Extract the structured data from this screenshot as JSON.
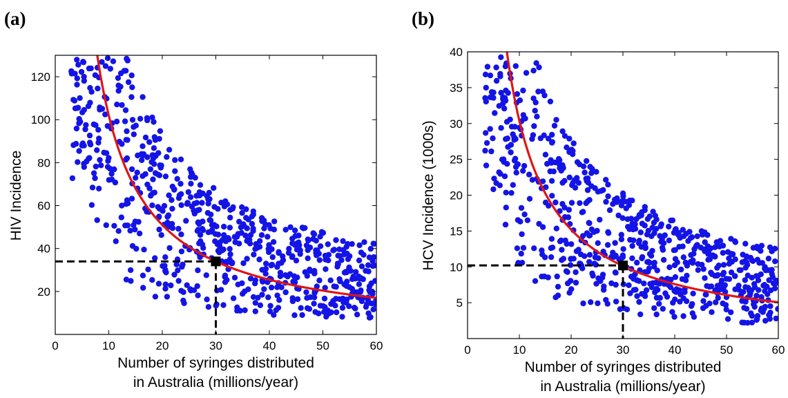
{
  "panels": {
    "a": {
      "label": "(a)"
    },
    "b": {
      "label": "(b)"
    }
  },
  "colors": {
    "points": "#1414e6",
    "fit": "#e01414",
    "marker": "#000000"
  },
  "chart_data": [
    {
      "type": "scatter",
      "title": "",
      "xlabel": [
        "Number of syringes distributed",
        "in Australia (millions/year)"
      ],
      "ylabel": "HIV Incidence",
      "xlim": [
        0,
        60
      ],
      "ylim": [
        0,
        130
      ],
      "xticks": [
        0,
        10,
        20,
        30,
        40,
        50,
        60
      ],
      "yticks": [
        20,
        40,
        60,
        80,
        100,
        120
      ],
      "grid": false,
      "fit_curve": {
        "label": "",
        "form": "y = 1020 / x",
        "color": "#e01414"
      },
      "highlight": {
        "x": 30,
        "y": 34
      },
      "scatter": {
        "n": 700,
        "x_range": [
          3,
          60
        ],
        "y_min_at_x": {
          "5": 35,
          "20": 12,
          "60": 5
        },
        "y_max_at_x": {
          "8": 130,
          "20": 115,
          "40": 65,
          "60": 40
        }
      }
    },
    {
      "type": "scatter",
      "title": "",
      "xlabel": [
        "Number of syringes distributed",
        "in Australia (millions/year)"
      ],
      "ylabel": "HCV Incidence (1000s)",
      "xlim": [
        0,
        60
      ],
      "ylim": [
        0,
        40
      ],
      "xticks": [
        0,
        10,
        20,
        30,
        40,
        50,
        60
      ],
      "yticks": [
        5,
        10,
        15,
        20,
        25,
        30,
        35,
        40
      ],
      "grid": false,
      "fit_curve": {
        "label": "",
        "form": "y = 304 / x",
        "color": "#e01414"
      },
      "highlight": {
        "x": 30,
        "y": 10.2
      },
      "scatter": {
        "n": 700,
        "x_range": [
          3,
          60
        ],
        "y_min_at_x": {
          "5": 11,
          "20": 4,
          "60": 1.5
        },
        "y_max_at_x": {
          "8": 40,
          "20": 35,
          "40": 20,
          "60": 12
        }
      }
    }
  ]
}
